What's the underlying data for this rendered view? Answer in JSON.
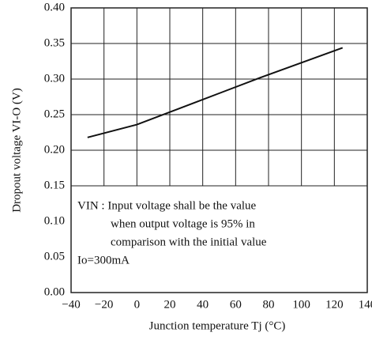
{
  "chart_data": {
    "type": "line",
    "x_label": "Junction temperature Tj (°C)",
    "y_label": "Dropout voltage VI-O (V)",
    "x": [
      -30,
      0,
      25,
      50,
      75,
      100,
      125
    ],
    "series": [
      {
        "name": "Dropout voltage",
        "color": "#111111",
        "values": [
          0.218,
          0.236,
          0.258,
          0.28,
          0.302,
          0.323,
          0.344
        ]
      }
    ],
    "xlim": [
      -40,
      140
    ],
    "xticks": [
      -40,
      -20,
      0,
      20,
      40,
      60,
      80,
      100,
      120,
      140
    ],
    "ylim": [
      0,
      0.4
    ],
    "yticks": [
      {
        "value": 0,
        "label": "0.00"
      },
      0.05,
      {
        "value": 0.1,
        "label": "0.10"
      },
      0.15,
      {
        "value": 0.2,
        "label": "0.20"
      },
      0.25,
      {
        "value": 0.3,
        "label": "0.30"
      },
      0.35,
      {
        "value": 0.4,
        "label": "0.40"
      }
    ],
    "grid": true,
    "annotation": [
      "VIN : Input voltage shall be the value",
      "when output voltage is 95% in",
      "comparison with the initial value",
      "Io=300mA"
    ]
  }
}
